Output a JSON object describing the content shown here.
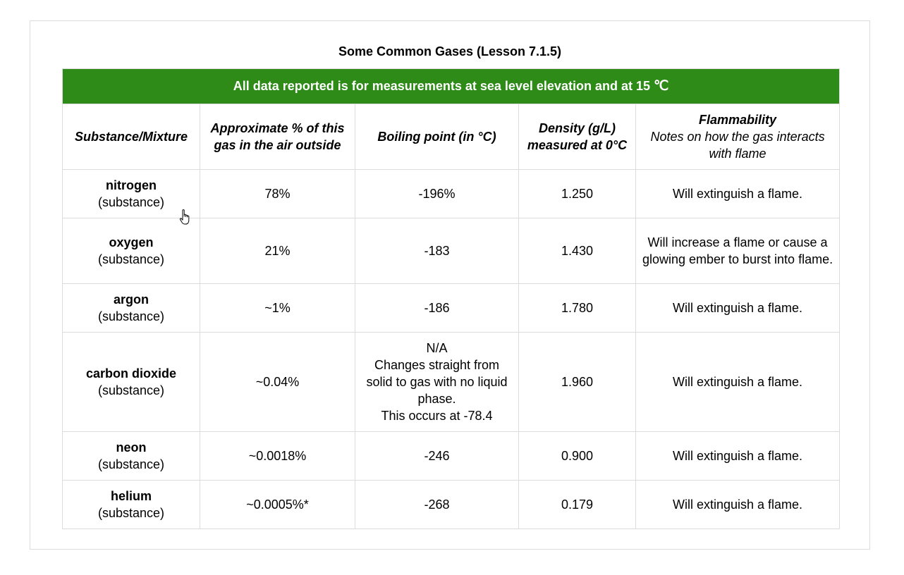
{
  "caption": "Some Common Gases (Lesson 7.1.5)",
  "banner": {
    "text": "All data reported is for measurements at sea level elevation and at 15 ",
    "unit": "℃"
  },
  "headers": {
    "substance": "Substance/Mixture",
    "percent": "Approximate % of this gas in the air outside",
    "boiling": "Boiling point (in °C)",
    "density": "Density (g/L) measured at 0°C",
    "flammability": "Flammability",
    "flammability_note": "Notes on how the gas interacts with flame"
  },
  "rows": [
    {
      "name": "nitrogen",
      "kind": "(substance)",
      "percent": "78%",
      "boiling": [
        "-196%"
      ],
      "density": "1.250",
      "flammability": "Will extinguish a flame."
    },
    {
      "name": "oxygen",
      "kind": "(substance)",
      "percent": "21%",
      "boiling": [
        "-183"
      ],
      "density": "1.430",
      "flammability": "Will increase a flame or cause a glowing ember to burst into flame."
    },
    {
      "name": "argon",
      "kind": "(substance)",
      "percent": "~1%",
      "boiling": [
        "-186"
      ],
      "density": "1.780",
      "flammability": "Will extinguish a flame."
    },
    {
      "name": "carbon dioxide",
      "kind": "(substance)",
      "percent": "~0.04%",
      "boiling": [
        "N/A",
        "Changes straight from solid to gas with no liquid phase.",
        "This occurs at -78.4"
      ],
      "density": "1.960",
      "flammability": "Will extinguish a flame."
    },
    {
      "name": "neon",
      "kind": "(substance)",
      "percent": "~0.0018%",
      "boiling": [
        "-246"
      ],
      "density": "0.900",
      "flammability": "Will extinguish a flame."
    },
    {
      "name": "helium",
      "kind": "(substance)",
      "percent": "~0.0005%*",
      "boiling": [
        "-268"
      ],
      "density": "0.179",
      "flammability": "Will extinguish a flame."
    }
  ],
  "colors": {
    "banner_background": "#2e8b17",
    "banner_text": "#ffffff",
    "grid_line": "#dcdcdc"
  },
  "icons": {
    "cursor": "hand-pointer-icon"
  }
}
